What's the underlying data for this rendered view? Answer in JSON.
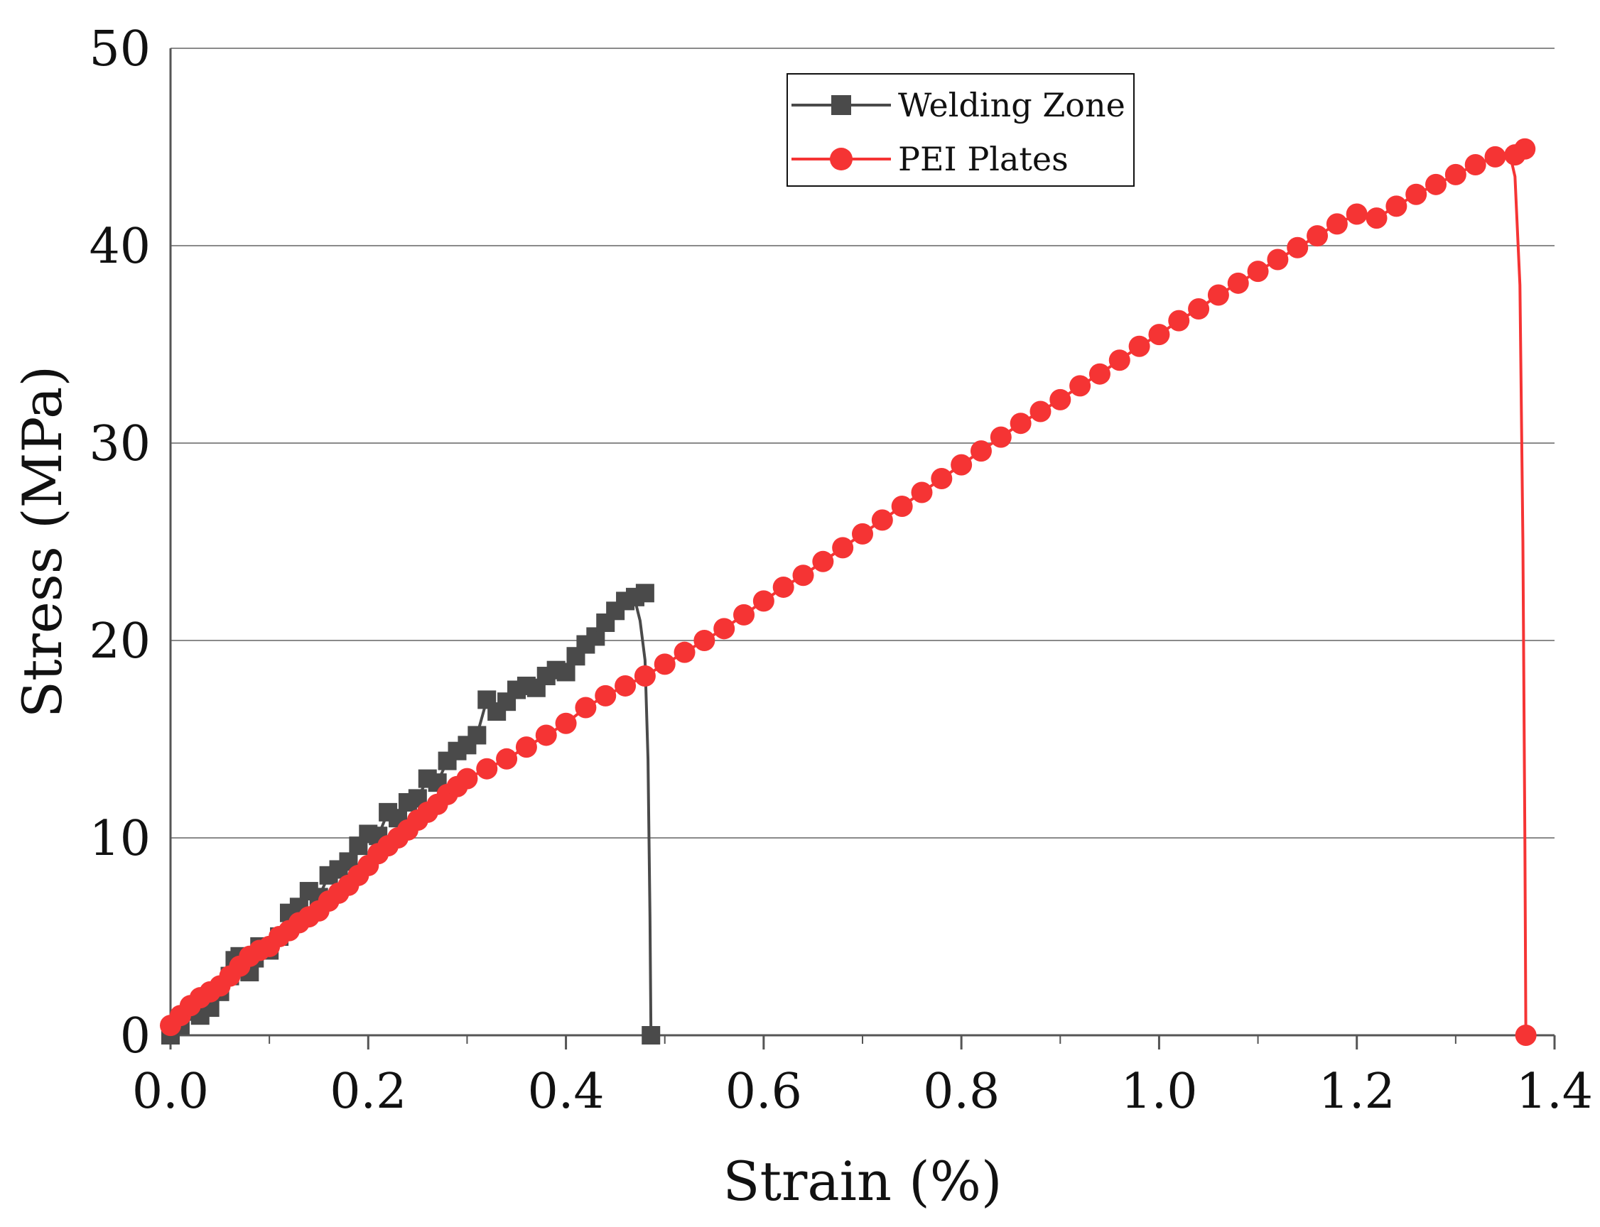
{
  "chart_data": {
    "type": "line",
    "title": "",
    "xlabel": "Strain (%)",
    "ylabel": "Stress (MPa)",
    "xlim": [
      0,
      1.4
    ],
    "ylim": [
      0,
      50
    ],
    "xticks": [
      0.0,
      0.2,
      0.4,
      0.6,
      0.8,
      1.0,
      1.2,
      1.4
    ],
    "xtick_labels": [
      "0.0",
      "0.2",
      "0.4",
      "0.6",
      "0.8",
      "1.0",
      "1.2",
      "1.4"
    ],
    "yticks": [
      0,
      10,
      20,
      30,
      40,
      50
    ],
    "ytick_labels": [
      "0",
      "10",
      "20",
      "30",
      "40",
      "50"
    ],
    "x_minor_step": 0.1,
    "grid": "horizontal",
    "legend_position": "top-center",
    "series": [
      {
        "name": "Welding Zone",
        "color": "#4a4a4a",
        "marker": "square",
        "points": [
          [
            0.0,
            0.0
          ],
          [
            0.01,
            0.5
          ],
          [
            0.02,
            1.2
          ],
          [
            0.03,
            1.0
          ],
          [
            0.04,
            1.4
          ],
          [
            0.05,
            2.2
          ],
          [
            0.06,
            3.0
          ],
          [
            0.065,
            3.8
          ],
          [
            0.07,
            4.0
          ],
          [
            0.08,
            3.2
          ],
          [
            0.085,
            3.9
          ],
          [
            0.09,
            4.5
          ],
          [
            0.1,
            4.3
          ],
          [
            0.11,
            5.0
          ],
          [
            0.12,
            6.2
          ],
          [
            0.13,
            6.5
          ],
          [
            0.14,
            7.3
          ],
          [
            0.15,
            7.0
          ],
          [
            0.16,
            8.1
          ],
          [
            0.17,
            8.4
          ],
          [
            0.18,
            8.8
          ],
          [
            0.19,
            9.6
          ],
          [
            0.2,
            10.2
          ],
          [
            0.21,
            10.1
          ],
          [
            0.22,
            11.3
          ],
          [
            0.23,
            11.0
          ],
          [
            0.24,
            11.8
          ],
          [
            0.25,
            12.0
          ],
          [
            0.26,
            13.0
          ],
          [
            0.27,
            12.8
          ],
          [
            0.28,
            13.9
          ],
          [
            0.29,
            14.4
          ],
          [
            0.3,
            14.7
          ],
          [
            0.31,
            15.2
          ],
          [
            0.32,
            17.0
          ],
          [
            0.33,
            16.4
          ],
          [
            0.34,
            16.9
          ],
          [
            0.35,
            17.5
          ],
          [
            0.36,
            17.7
          ],
          [
            0.37,
            17.6
          ],
          [
            0.38,
            18.2
          ],
          [
            0.39,
            18.5
          ],
          [
            0.4,
            18.4
          ],
          [
            0.41,
            19.2
          ],
          [
            0.42,
            19.8
          ],
          [
            0.43,
            20.2
          ],
          [
            0.44,
            20.9
          ],
          [
            0.45,
            21.5
          ],
          [
            0.46,
            22.0
          ],
          [
            0.47,
            22.2
          ],
          [
            0.48,
            22.4
          ]
        ],
        "failure_path": [
          [
            0.47,
            22.0
          ],
          [
            0.475,
            21.0
          ],
          [
            0.48,
            19.0
          ],
          [
            0.483,
            14.0
          ],
          [
            0.485,
            6.0
          ],
          [
            0.486,
            0.0
          ]
        ],
        "end_marker": [
          0.486,
          0.0
        ]
      },
      {
        "name": "PEI Plates",
        "color": "#f53434",
        "marker": "circle",
        "points": [
          [
            0.0,
            0.5
          ],
          [
            0.01,
            1.0
          ],
          [
            0.02,
            1.5
          ],
          [
            0.03,
            1.9
          ],
          [
            0.04,
            2.2
          ],
          [
            0.05,
            2.5
          ],
          [
            0.06,
            3.0
          ],
          [
            0.07,
            3.5
          ],
          [
            0.08,
            4.0
          ],
          [
            0.09,
            4.3
          ],
          [
            0.1,
            4.5
          ],
          [
            0.11,
            5.0
          ],
          [
            0.12,
            5.3
          ],
          [
            0.13,
            5.7
          ],
          [
            0.14,
            6.0
          ],
          [
            0.15,
            6.3
          ],
          [
            0.16,
            6.8
          ],
          [
            0.17,
            7.2
          ],
          [
            0.18,
            7.6
          ],
          [
            0.19,
            8.1
          ],
          [
            0.2,
            8.6
          ],
          [
            0.21,
            9.2
          ],
          [
            0.22,
            9.6
          ],
          [
            0.23,
            10.0
          ],
          [
            0.24,
            10.4
          ],
          [
            0.25,
            10.9
          ],
          [
            0.26,
            11.3
          ],
          [
            0.27,
            11.7
          ],
          [
            0.28,
            12.2
          ],
          [
            0.29,
            12.6
          ],
          [
            0.3,
            13.0
          ],
          [
            0.32,
            13.5
          ],
          [
            0.34,
            14.0
          ],
          [
            0.36,
            14.6
          ],
          [
            0.38,
            15.2
          ],
          [
            0.4,
            15.8
          ],
          [
            0.42,
            16.6
          ],
          [
            0.44,
            17.2
          ],
          [
            0.46,
            17.7
          ],
          [
            0.48,
            18.2
          ],
          [
            0.5,
            18.8
          ],
          [
            0.52,
            19.4
          ],
          [
            0.54,
            20.0
          ],
          [
            0.56,
            20.6
          ],
          [
            0.58,
            21.3
          ],
          [
            0.6,
            22.0
          ],
          [
            0.62,
            22.7
          ],
          [
            0.64,
            23.3
          ],
          [
            0.66,
            24.0
          ],
          [
            0.68,
            24.7
          ],
          [
            0.7,
            25.4
          ],
          [
            0.72,
            26.1
          ],
          [
            0.74,
            26.8
          ],
          [
            0.76,
            27.5
          ],
          [
            0.78,
            28.2
          ],
          [
            0.8,
            28.9
          ],
          [
            0.82,
            29.6
          ],
          [
            0.84,
            30.3
          ],
          [
            0.86,
            31.0
          ],
          [
            0.88,
            31.6
          ],
          [
            0.9,
            32.2
          ],
          [
            0.92,
            32.9
          ],
          [
            0.94,
            33.5
          ],
          [
            0.96,
            34.2
          ],
          [
            0.98,
            34.9
          ],
          [
            1.0,
            35.5
          ],
          [
            1.02,
            36.2
          ],
          [
            1.04,
            36.8
          ],
          [
            1.06,
            37.5
          ],
          [
            1.08,
            38.1
          ],
          [
            1.1,
            38.7
          ],
          [
            1.12,
            39.3
          ],
          [
            1.14,
            39.9
          ],
          [
            1.16,
            40.5
          ],
          [
            1.18,
            41.1
          ],
          [
            1.2,
            41.6
          ],
          [
            1.22,
            41.4
          ],
          [
            1.24,
            42.0
          ],
          [
            1.26,
            42.6
          ],
          [
            1.28,
            43.1
          ],
          [
            1.3,
            43.6
          ],
          [
            1.32,
            44.1
          ],
          [
            1.34,
            44.5
          ],
          [
            1.36,
            44.6
          ],
          [
            1.37,
            44.9
          ]
        ],
        "failure_path": [
          [
            1.355,
            44.6
          ],
          [
            1.36,
            43.5
          ],
          [
            1.365,
            38.0
          ],
          [
            1.368,
            25.0
          ],
          [
            1.37,
            10.0
          ],
          [
            1.371,
            0.0
          ]
        ],
        "end_marker": [
          1.371,
          0.0
        ]
      }
    ]
  }
}
